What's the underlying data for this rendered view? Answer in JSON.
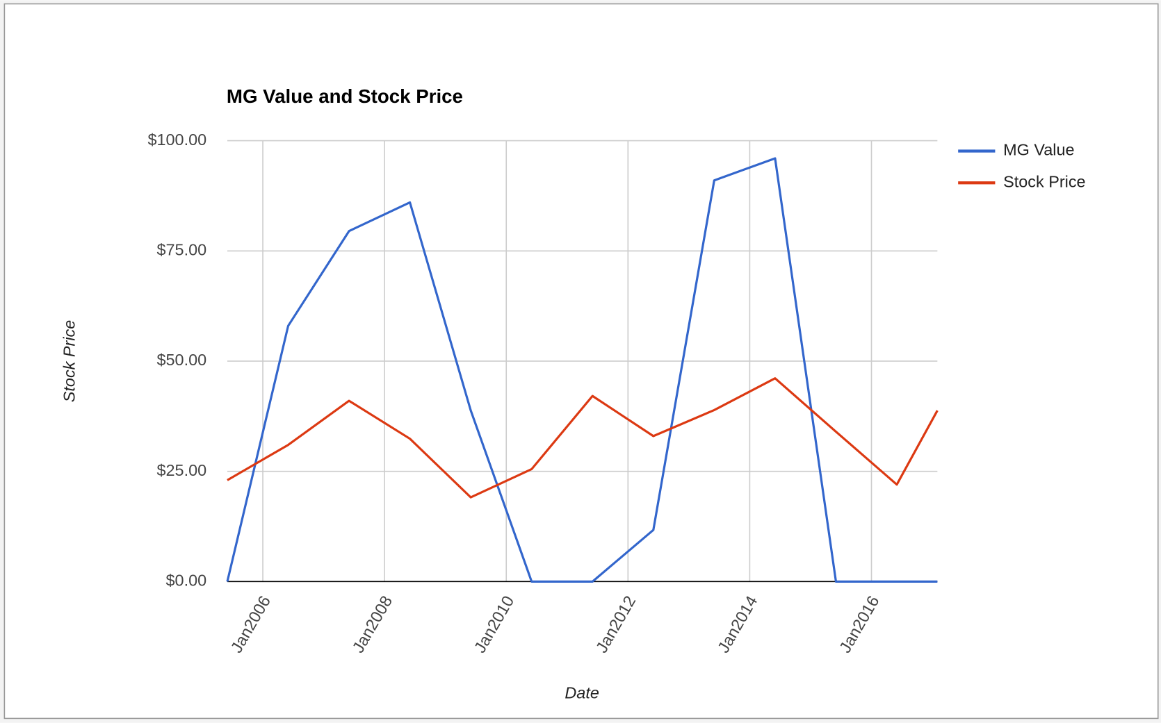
{
  "chart_data": {
    "type": "line",
    "title": "MG Value and Stock Price",
    "x_label": "Date",
    "y_label": "Stock Price",
    "x": [
      "2005-06",
      "2006-06",
      "2007-06",
      "2008-06",
      "2009-06",
      "2010-06",
      "2011-06",
      "2012-06",
      "2013-06",
      "2014-06",
      "2015-06",
      "2016-06",
      "2017-02"
    ],
    "series": [
      {
        "name": "MG Value",
        "color": "#3366cc",
        "values": [
          0,
          58,
          79.5,
          86,
          38.8,
          0,
          0,
          11.7,
          91,
          96,
          0,
          0,
          0
        ]
      },
      {
        "name": "Stock Price",
        "color": "#dc3912",
        "values": [
          23,
          31,
          41,
          32.4,
          19.1,
          25.5,
          42.1,
          33,
          38.9,
          46.1,
          34,
          22,
          38.8
        ]
      }
    ],
    "xlim": [
      "2005-06",
      "2017-02"
    ],
    "xticks": [
      {
        "value": "2006-01",
        "label": "Jan2006"
      },
      {
        "value": "2008-01",
        "label": "Jan2008"
      },
      {
        "value": "2010-01",
        "label": "Jan2010"
      },
      {
        "value": "2012-01",
        "label": "Jan2012"
      },
      {
        "value": "2014-01",
        "label": "Jan2014"
      },
      {
        "value": "2016-01",
        "label": "Jan2016"
      }
    ],
    "ylim": [
      0,
      100
    ],
    "yticks": [
      {
        "value": 0,
        "label": "$0.00"
      },
      {
        "value": 25,
        "label": "$25.00"
      },
      {
        "value": 50,
        "label": "$50.00"
      },
      {
        "value": 75,
        "label": "$75.00"
      },
      {
        "value": 100,
        "label": "$100.00"
      }
    ],
    "grid": true,
    "legend": "right"
  }
}
